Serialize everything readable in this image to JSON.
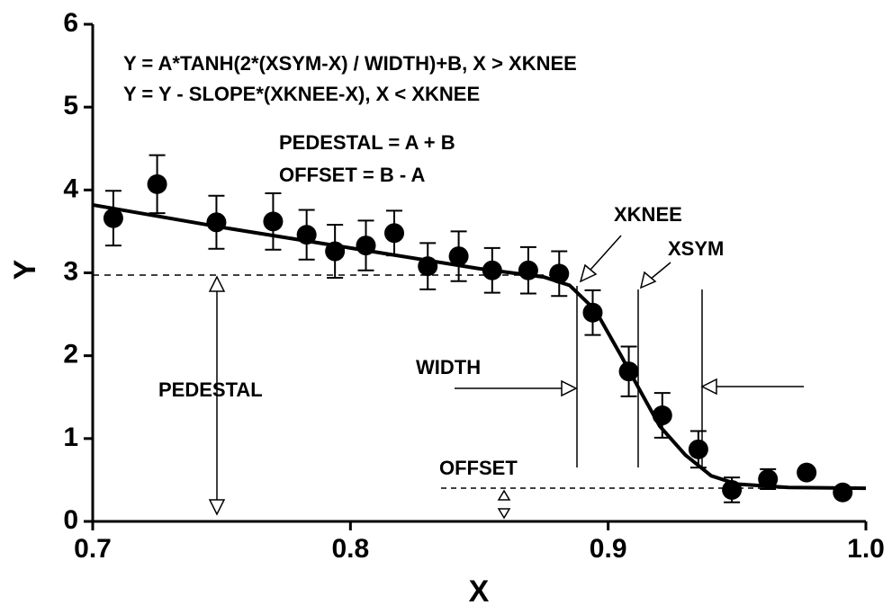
{
  "chart_data": {
    "type": "scatter",
    "xlabel": "X",
    "ylabel": "Y",
    "xlim": [
      0.7,
      1.0
    ],
    "xticks": [
      0.7,
      0.8,
      0.9,
      {
        "value": 1.0,
        "label": "1.0"
      }
    ],
    "ylim": [
      0,
      6
    ],
    "yticks": [
      0,
      1,
      2,
      3,
      4,
      5,
      6
    ],
    "annotations": [
      "Y = A*TANH(2*(XSYM-X) / WIDTH)+B, X > XKNEE",
      "Y = Y - SLOPE*(XKNEE-X),  X < XKNEE",
      "PEDESTAL = A + B",
      "OFFSET = B - A",
      "XKNEE",
      "XSYM",
      "WIDTH",
      "PEDESTAL",
      "OFFSET"
    ],
    "series": [
      {
        "color": "#000000",
        "x": [
          0.708,
          0.725,
          0.748,
          0.77,
          0.783,
          0.794,
          0.806,
          0.817,
          0.83,
          0.842,
          0.855,
          0.869,
          0.881,
          0.894,
          0.908,
          0.921,
          0.935,
          0.948,
          0.962,
          0.977,
          0.991
        ],
        "values": [
          3.66,
          4.07,
          3.61,
          3.62,
          3.46,
          3.26,
          3.33,
          3.48,
          3.08,
          3.2,
          3.03,
          3.03,
          2.99,
          2.52,
          1.81,
          1.28,
          0.87,
          0.38,
          0.51,
          0.59,
          0.35
        ],
        "errors": [
          0.33,
          0.35,
          0.32,
          0.34,
          0.3,
          0.32,
          0.3,
          0.27,
          0.28,
          0.3,
          0.27,
          0.28,
          0.27,
          0.27,
          0.3,
          0.27,
          0.22,
          0.15,
          0.12,
          0.0,
          0.0
        ]
      },
      {
        "type": "line",
        "color": "#000000",
        "x": [
          0.7,
          0.75,
          0.8,
          0.85,
          0.875,
          0.885,
          0.895,
          0.905,
          0.912,
          0.92,
          0.93,
          0.94,
          0.95,
          0.97,
          1.0
        ],
        "values": [
          3.82,
          3.55,
          3.3,
          3.05,
          2.95,
          2.85,
          2.55,
          2.0,
          1.6,
          1.15,
          0.8,
          0.55,
          0.45,
          0.41,
          0.4
        ]
      }
    ]
  }
}
